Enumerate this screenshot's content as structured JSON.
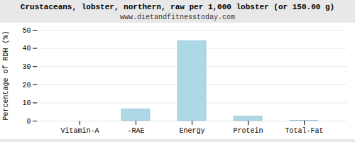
{
  "chart_data": {
    "type": "bar",
    "title": "Crustaceans, lobster, northern, raw per 1,000 lobster (or 150.00 g)",
    "subtitle": "www.dietandfitnesstoday.com",
    "categories": [
      "Vitamin-A",
      "-RAE",
      "Energy",
      "Protein",
      "Total-Fat"
    ],
    "values": [
      0,
      6.5,
      44,
      2.5,
      0.2
    ],
    "color": "#add8e6",
    "ylabel": "Percentage of RDH (%)",
    "ylim": [
      0,
      50
    ],
    "yticks": [
      0,
      10,
      20,
      30,
      40,
      50
    ],
    "grid": true
  }
}
